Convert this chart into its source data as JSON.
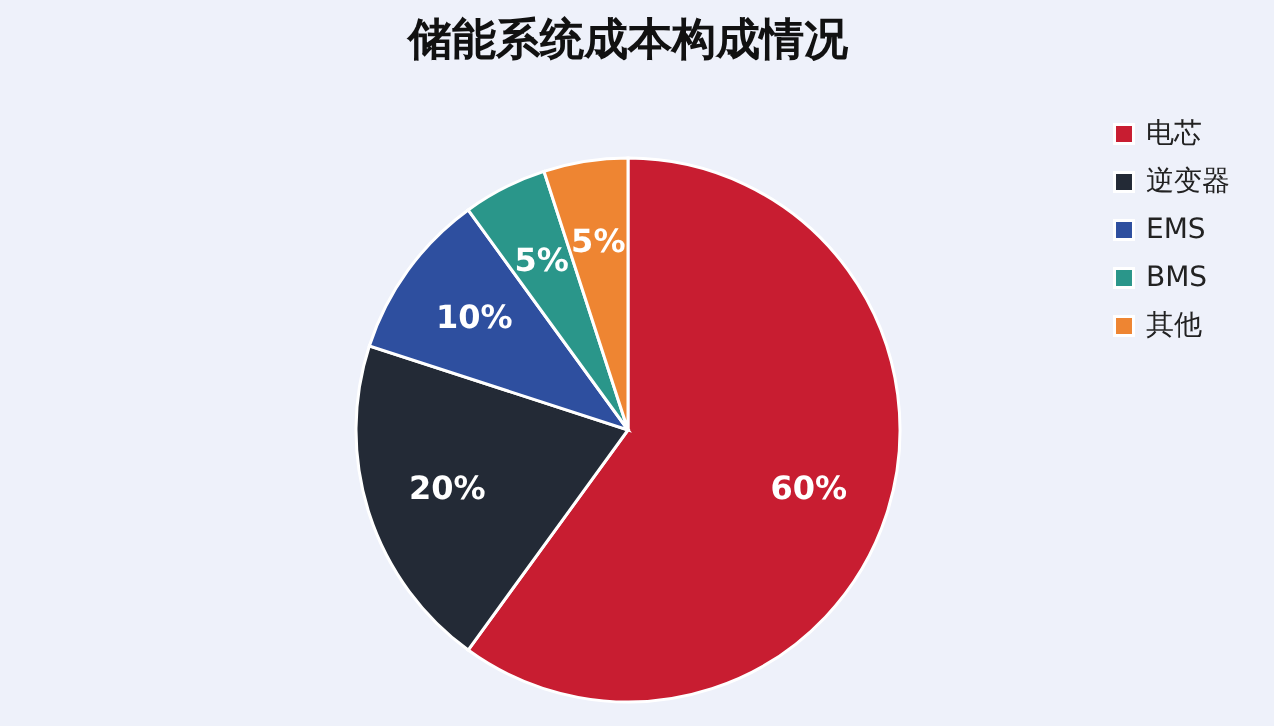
{
  "chart_data": {
    "type": "pie",
    "title": "储能系统成本构成情况",
    "categories": [
      "电芯",
      "逆变器",
      "EMS",
      "BMS",
      "其他"
    ],
    "values": [
      60,
      20,
      10,
      5,
      5
    ],
    "colors": [
      "#c81d31",
      "#232a36",
      "#2e4f9f",
      "#2a968a",
      "#ee8532"
    ],
    "value_labels": [
      "60%",
      "20%",
      "10%",
      "5%",
      "5%"
    ],
    "legend": "top right"
  }
}
